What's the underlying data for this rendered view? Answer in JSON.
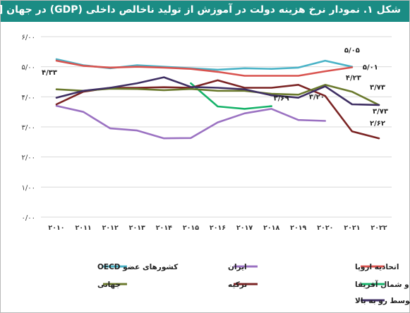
{
  "title": "شکل ۱. نمودار نرخ هزینه دولت در آموزش از تولید ناخالص داخلی (GDP) در جهان [۳۵]",
  "chart_data": {
    "type": "line",
    "x": [
      "۲۰۱۰",
      "۲۰۱۱",
      "۲۰۱۲",
      "۲۰۱۳",
      "۲۰۱۴",
      "۲۰۱۵",
      "۲۰۱۶",
      "۲۰۱۷",
      "۲۰۱۸",
      "۲۰۱۹",
      "۲۰۲۰",
      "۲۰۲۱",
      "۲۰۲۲"
    ],
    "x_values": [
      2010,
      2011,
      2012,
      2013,
      2014,
      2015,
      2016,
      2017,
      2018,
      2019,
      2020,
      2021,
      2022
    ],
    "ylim": [
      0,
      6
    ],
    "yticks": [
      0,
      1,
      2,
      3,
      4,
      5,
      6
    ],
    "ytick_labels": [
      "۰/۰۰",
      "۱/۰۰",
      "۲/۰۰",
      "۳/۰۰",
      "۴/۰۰",
      "۵/۰۰",
      "۶/۰۰"
    ],
    "grid": "horizontal",
    "legend_position": "bottom",
    "series": [
      {
        "name": "کشورهای عضو OECD",
        "color": "#4ab3c7",
        "values": [
          5.25,
          5.05,
          4.95,
          5.05,
          5.0,
          4.95,
          4.9,
          4.95,
          4.93,
          4.97,
          5.2,
          5.0,
          null
        ]
      },
      {
        "name": "اتحادیه اروپا",
        "color": "#d9534f",
        "values": [
          5.2,
          5.03,
          4.97,
          5.0,
          4.97,
          4.93,
          4.83,
          4.7,
          4.7,
          4.7,
          4.85,
          4.98,
          null
        ]
      },
      {
        "name": "ایران",
        "color": "#9b72c2",
        "values": [
          3.7,
          3.5,
          2.95,
          2.88,
          2.62,
          2.63,
          3.15,
          3.45,
          3.6,
          3.23,
          3.2,
          null,
          null
        ]
      },
      {
        "name": "خاورمیانه و شمال آفریقا",
        "color": "#17b36a",
        "values": [
          null,
          null,
          null,
          null,
          null,
          4.45,
          3.68,
          3.6,
          3.69,
          null,
          null,
          null,
          null
        ]
      },
      {
        "name": "ترکیه",
        "color": "#7b2424",
        "values": [
          3.75,
          4.17,
          4.3,
          4.3,
          4.32,
          4.3,
          4.55,
          4.3,
          4.3,
          4.4,
          4.03,
          2.85,
          2.62
        ]
      },
      {
        "name": "جهانی",
        "color": "#6b7a2e",
        "values": [
          4.25,
          4.2,
          4.27,
          4.26,
          4.22,
          4.26,
          4.2,
          4.2,
          4.1,
          4.07,
          4.4,
          4.17,
          3.73
        ]
      },
      {
        "name": "کشورهای با درآمد متوسط رو به بالا",
        "color": "#3f2f63",
        "values": [
          3.97,
          4.2,
          4.3,
          4.45,
          4.65,
          4.33,
          4.3,
          4.25,
          4.05,
          3.97,
          4.35,
          3.75,
          3.73
        ]
      }
    ],
    "annotations": [
      "۴/۳۳",
      "۵/۰۵",
      "۵/۰۱",
      "۴/۲۳",
      "۳/۶۹",
      "۳/۲۰",
      "۳/۷۳",
      "۳/۷۳",
      "۲/۶۲"
    ]
  }
}
